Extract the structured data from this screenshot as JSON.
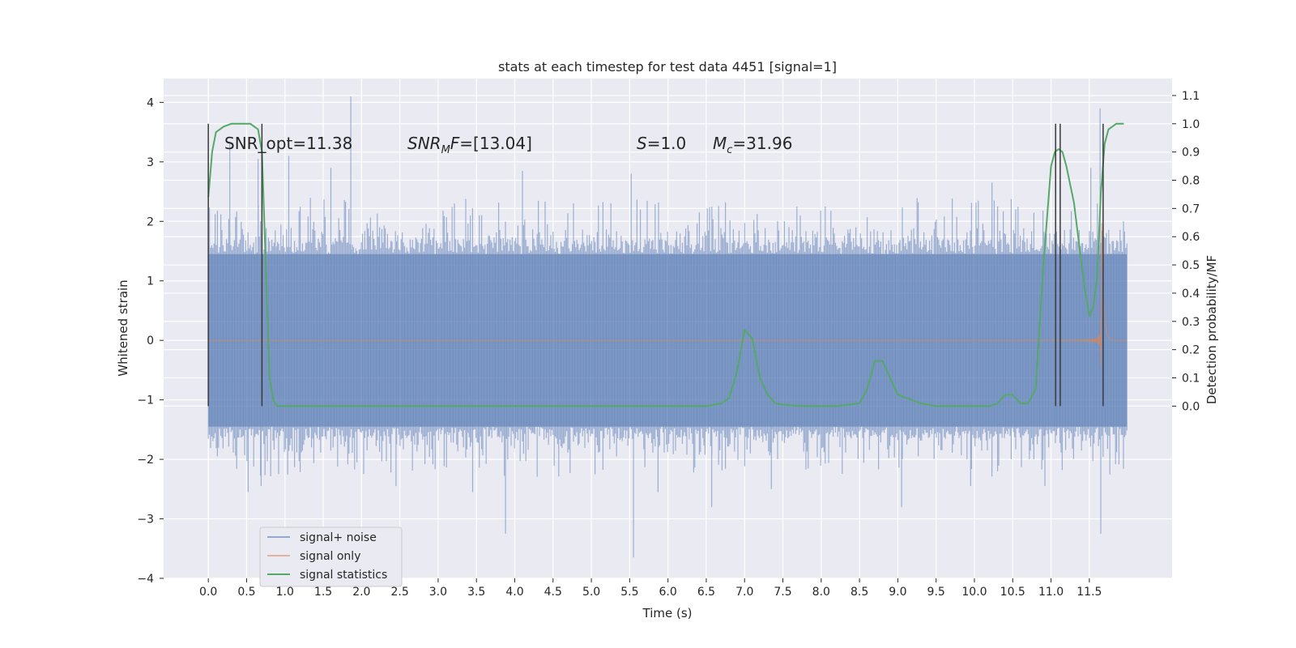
{
  "chart_data": {
    "type": "line",
    "title": "stats at each timestep for test data 4451 [signal=1]",
    "xlabel": "Time (s)",
    "ylabel": "Whitened strain",
    "ylabel_right": "Detection probability/MF",
    "xlim": [
      -0.5833,
      12.58
    ],
    "ylim": [
      -4.0,
      4.4
    ],
    "ylim_right": [
      -0.61,
      1.16
    ],
    "x_ticks": [
      "0.0",
      "0.5",
      "1.0",
      "1.5",
      "2.0",
      "2.5",
      "3.0",
      "3.5",
      "4.0",
      "4.5",
      "5.0",
      "5.5",
      "6.0",
      "6.5",
      "7.0",
      "7.5",
      "8.0",
      "8.5",
      "9.0",
      "9.5",
      "10.0",
      "10.5",
      "11.0",
      "11.5"
    ],
    "y_ticks": [
      "4",
      "3",
      "2",
      "1",
      "0",
      "−1",
      "−2",
      "−3",
      "−4"
    ],
    "y_ticks_right": [
      "1.1",
      "1.0",
      "0.9",
      "0.8",
      "0.7",
      "0.6",
      "0.5",
      "0.4",
      "0.3",
      "0.2",
      "0.1",
      "0.0"
    ],
    "grid": true,
    "legend_position": "lower-left",
    "annotations": [
      {
        "id": "snr_opt",
        "text": "SNR_opt=11.38"
      },
      {
        "id": "snr_mf",
        "text": "SNR_MF=[13.04]"
      },
      {
        "id": "s",
        "text": "S=1.0"
      },
      {
        "id": "mc",
        "text": "M_c=31.96"
      }
    ],
    "series": [
      {
        "name": "signal+ noise",
        "color": "#4c72b0",
        "axis": "left",
        "kind": "noise",
        "x_start": 0.0,
        "x_end": 11.99,
        "typical_range": [
          -1.45,
          1.45
        ],
        "peaks": [
          {
            "x": 1.86,
            "y": 4.1
          },
          {
            "x": 11.64,
            "y": 3.9
          },
          {
            "x": 0.28,
            "y": 3.3
          },
          {
            "x": 0.65,
            "y": 3.05
          },
          {
            "x": 1.05,
            "y": 3.1
          },
          {
            "x": 1.6,
            "y": 2.9
          },
          {
            "x": 4.1,
            "y": 2.85
          },
          {
            "x": 5.52,
            "y": 2.8
          },
          {
            "x": 10.23,
            "y": 2.65
          },
          {
            "x": 11.52,
            "y": 2.9
          },
          {
            "x": 3.88,
            "y": -3.25
          },
          {
            "x": 5.55,
            "y": -3.65
          },
          {
            "x": 11.65,
            "y": -3.25
          },
          {
            "x": 0.52,
            "y": -2.55
          },
          {
            "x": 0.69,
            "y": -2.45
          },
          {
            "x": 3.45,
            "y": -2.55
          },
          {
            "x": 5.87,
            "y": -2.55
          },
          {
            "x": 6.57,
            "y": -2.8
          },
          {
            "x": 7.35,
            "y": -2.5
          },
          {
            "x": 9.05,
            "y": -2.8
          },
          {
            "x": 10.92,
            "y": -2.45
          },
          {
            "x": 2.45,
            "y": -2.45
          },
          {
            "x": 9.95,
            "y": -2.45
          }
        ]
      },
      {
        "name": "signal only",
        "color": "#dd8452",
        "axis": "left",
        "kind": "chirp",
        "x_start": 0.0,
        "x_end": 11.99,
        "merger_time": 11.66
      },
      {
        "name": "signal statistics",
        "color": "#55a868",
        "axis": "right",
        "kind": "line",
        "x": [
          0.0,
          0.05,
          0.1,
          0.2,
          0.3,
          0.4,
          0.5,
          0.55,
          0.6,
          0.65,
          0.7,
          0.75,
          0.8,
          0.85,
          0.9,
          1.0,
          2.0,
          3.0,
          4.0,
          5.0,
          5.5,
          6.0,
          6.5,
          6.7,
          6.8,
          6.9,
          7.0,
          7.1,
          7.2,
          7.3,
          7.4,
          7.5,
          7.8,
          8.2,
          8.5,
          8.6,
          8.7,
          8.8,
          8.9,
          9.0,
          9.1,
          9.3,
          9.5,
          9.7,
          10.0,
          10.2,
          10.3,
          10.4,
          10.5,
          10.6,
          10.7,
          10.8,
          10.9,
          11.0,
          11.05,
          11.1,
          11.15,
          11.2,
          11.3,
          11.4,
          11.45,
          11.5,
          11.55,
          11.6,
          11.65,
          11.7,
          11.75,
          11.8,
          11.85,
          11.9,
          11.95
        ],
        "y": [
          0.74,
          0.9,
          0.97,
          0.99,
          1.0,
          1.0,
          1.0,
          1.0,
          0.99,
          0.98,
          0.9,
          0.5,
          0.1,
          0.02,
          0.0,
          0.0,
          0.0,
          0.0,
          0.0,
          0.0,
          0.0,
          0.0,
          0.0,
          0.01,
          0.03,
          0.12,
          0.27,
          0.24,
          0.1,
          0.04,
          0.01,
          0.005,
          0.0,
          0.0,
          0.01,
          0.06,
          0.16,
          0.16,
          0.1,
          0.04,
          0.03,
          0.01,
          0.0,
          0.0,
          0.0,
          0.0,
          0.01,
          0.04,
          0.04,
          0.01,
          0.01,
          0.06,
          0.5,
          0.85,
          0.9,
          0.91,
          0.9,
          0.85,
          0.72,
          0.5,
          0.4,
          0.32,
          0.35,
          0.45,
          0.75,
          0.93,
          0.98,
          0.99,
          1.0,
          1.0,
          1.0
        ]
      },
      {
        "name": "",
        "color": "#3a3a3a",
        "axis": "right",
        "kind": "vlines",
        "x": [
          0.0,
          0.7,
          11.06,
          11.12,
          11.68
        ],
        "y_range": [
          0.0,
          1.0
        ]
      }
    ]
  }
}
